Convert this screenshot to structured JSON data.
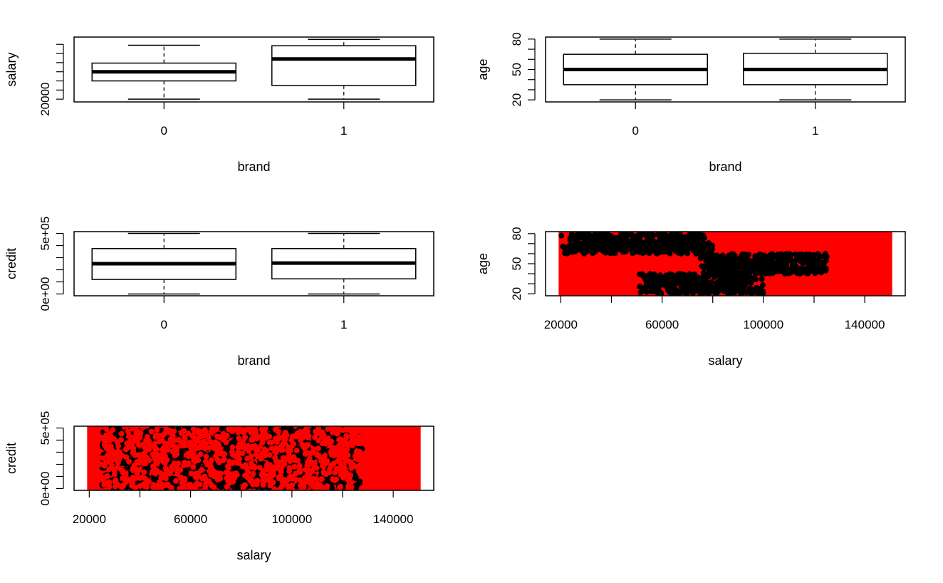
{
  "chart_data": [
    {
      "type": "box",
      "xlabel": "brand",
      "ylabel": "salary",
      "categories": [
        "0",
        "1"
      ],
      "y_tick_labels": [
        "20000"
      ],
      "y_ticks": [
        20000,
        40000,
        60000,
        80000,
        100000,
        120000,
        140000
      ],
      "ylim": [
        14000,
        156000
      ],
      "boxes": [
        {
          "category": "0",
          "min": 20000,
          "q1": 60000,
          "median": 80000,
          "q3": 99000,
          "max": 138000
        },
        {
          "category": "1",
          "min": 20000,
          "q1": 50000,
          "median": 108000,
          "q3": 137000,
          "max": 151000
        }
      ]
    },
    {
      "type": "box",
      "xlabel": "brand",
      "ylabel": "age",
      "categories": [
        "0",
        "1"
      ],
      "y_tick_labels": [
        "20",
        "50",
        "80"
      ],
      "y_ticks": [
        20,
        30,
        40,
        50,
        60,
        70,
        80
      ],
      "ylim": [
        18,
        82
      ],
      "boxes": [
        {
          "category": "0",
          "min": 20,
          "q1": 35,
          "median": 50,
          "q3": 65,
          "max": 80
        },
        {
          "category": "1",
          "min": 20,
          "q1": 35,
          "median": 50,
          "q3": 66,
          "max": 80
        }
      ]
    },
    {
      "type": "box",
      "xlabel": "brand",
      "ylabel": "credit",
      "categories": [
        "0",
        "1"
      ],
      "y_tick_labels": [
        "0e+00",
        "5e+05"
      ],
      "y_ticks": [
        0,
        100000,
        200000,
        300000,
        400000,
        500000
      ],
      "ylim": [
        -15000,
        515000
      ],
      "boxes": [
        {
          "category": "0",
          "min": 0,
          "q1": 120000,
          "median": 250000,
          "q3": 375000,
          "max": 500000
        },
        {
          "category": "1",
          "min": 0,
          "q1": 125000,
          "median": 255000,
          "q3": 375000,
          "max": 500000
        }
      ]
    },
    {
      "type": "scatter",
      "xlabel": "salary",
      "ylabel": "age",
      "x_tick_labels": [
        "20000",
        "60000",
        "100000",
        "140000"
      ],
      "x_ticks": [
        20000,
        40000,
        60000,
        80000,
        100000,
        120000,
        140000
      ],
      "y_tick_labels": [
        "20",
        "50",
        "80"
      ],
      "y_ticks": [
        20,
        30,
        40,
        50,
        60,
        70,
        80
      ],
      "xlim": [
        14000,
        156000
      ],
      "ylim": [
        18,
        82
      ],
      "background_band": {
        "x": [
          20000,
          150000
        ],
        "y": [
          20,
          80
        ],
        "color": "#ff0000"
      },
      "clusters": [
        {
          "color": "#000000",
          "x": [
            20000,
            80000
          ],
          "y": [
            60,
            80
          ],
          "edge_spread": 5000
        },
        {
          "color": "#000000",
          "x": [
            50000,
            100000
          ],
          "y": [
            20,
            40
          ],
          "edge_spread": 4000
        },
        {
          "color": "#000000",
          "x": [
            75000,
            125000
          ],
          "y": [
            40,
            60
          ],
          "edge_spread": 6000
        }
      ]
    },
    {
      "type": "scatter",
      "xlabel": "salary",
      "ylabel": "credit",
      "x_tick_labels": [
        "20000",
        "60000",
        "100000",
        "140000"
      ],
      "x_ticks": [
        20000,
        40000,
        60000,
        80000,
        100000,
        120000,
        140000
      ],
      "y_tick_labels": [
        "0e+00",
        "5e+05"
      ],
      "y_ticks": [
        0,
        100000,
        200000,
        300000,
        400000,
        500000
      ],
      "xlim": [
        14000,
        156000
      ],
      "ylim": [
        -15000,
        515000
      ],
      "background_band": {
        "x": [
          20000,
          150000
        ],
        "y": [
          0,
          500000
        ],
        "color": "#ff0000"
      },
      "clusters": [
        {
          "color": "#000000",
          "x": [
            25000,
            128000
          ],
          "y": [
            0,
            500000
          ],
          "density": "mixed"
        }
      ]
    }
  ],
  "colors": {
    "brand0": "#ff0000",
    "brand1": "#000000"
  }
}
